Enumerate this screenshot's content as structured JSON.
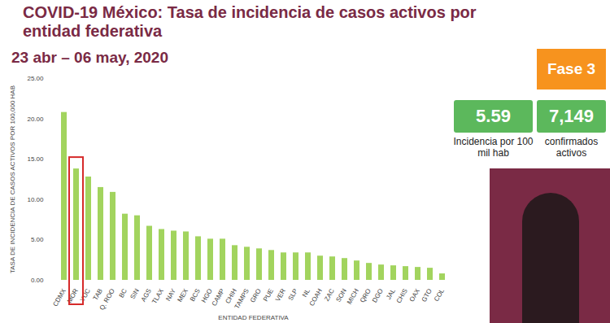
{
  "chart_data": {
    "type": "bar",
    "title": "COVID-19 México: Tasa de incidencia de casos activos por entidad federativa",
    "subtitle": "23 abr – 06 may, 2020",
    "x_label": "ENTIDAD FEDERATIVA",
    "y_label": "TASA DE INCIDENCIA DE CASOS ACTIVOS POR 100,000 HAB",
    "categories": [
      "CDMX",
      "MOR",
      "YUC",
      "TAB",
      "Q. ROO",
      "BC",
      "SIN",
      "AGS",
      "TLAX",
      "NAY",
      "MEX",
      "BCS",
      "HGO",
      "CAMP",
      "CHIH",
      "TAMPS",
      "GRO",
      "PUE",
      "VER",
      "SLP",
      "NL",
      "COAH",
      "ZAC",
      "SON",
      "MICH",
      "QRO",
      "DGO",
      "JAL",
      "CHIS",
      "OAX",
      "GTO",
      "COL"
    ],
    "values": [
      20.8,
      13.8,
      12.8,
      11.5,
      10.9,
      8.2,
      8.0,
      6.7,
      6.3,
      6.1,
      6.0,
      5.4,
      5.1,
      5.1,
      4.3,
      4.1,
      3.9,
      3.7,
      3.4,
      3.4,
      3.4,
      3.0,
      2.9,
      2.7,
      2.4,
      2.1,
      1.9,
      1.8,
      1.7,
      1.6,
      1.5,
      0.8
    ],
    "color": "#a2d45e",
    "ylim": [
      0,
      25
    ],
    "yticks": [
      {
        "value": 0,
        "label": "0.00"
      },
      {
        "value": 5,
        "label": "5.00"
      },
      {
        "value": 10,
        "label": "10.00"
      },
      {
        "value": 15,
        "label": "15.00"
      },
      {
        "value": 20,
        "label": "20.00"
      },
      {
        "value": 25,
        "label": "25.00"
      }
    ],
    "grid": false,
    "annotations": [
      {
        "highlight": "MOR",
        "color": "#d62b2b"
      }
    ],
    "panel": {
      "phase": "Fase 3",
      "stats": [
        {
          "value": 5.59,
          "label": "5.59",
          "caption": "Incidencia por 100 mil hab"
        },
        {
          "value": 7149,
          "label": "7,149",
          "caption": "confirmados activos"
        }
      ]
    }
  }
}
